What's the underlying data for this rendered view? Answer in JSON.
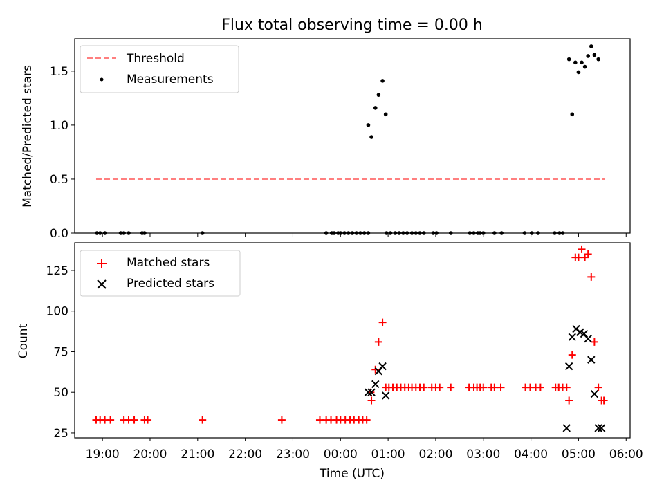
{
  "colors": {
    "threshold": "#ff7f7f",
    "measurements": "#000000",
    "matched": "#ff0000",
    "predicted": "#000000"
  },
  "chart_data": [
    {
      "type": "scatter",
      "title": "Flux total observing time = 0.00 h",
      "xlabel": "",
      "ylabel": "Matched/Predicted stars",
      "xlim": [
        "18:25",
        "06:05"
      ],
      "ylim": [
        0,
        1.8
      ],
      "yticks": [
        0.0,
        0.5,
        1.0,
        1.5
      ],
      "yticklabels": [
        "0.0",
        "0.5",
        "1.0",
        "1.5"
      ],
      "legend_position": "top-left",
      "legend": [
        "Threshold",
        "Measurements"
      ],
      "series": [
        {
          "name": "Threshold",
          "style": "dashed-line",
          "x": [
            "18:52",
            "05:33"
          ],
          "y": [
            0.5,
            0.5
          ]
        },
        {
          "name": "Measurements",
          "style": "dot",
          "x": [
            "18:53",
            "18:57",
            "19:03",
            "19:23",
            "19:27",
            "19:33",
            "19:50",
            "19:53",
            "21:06",
            "23:49",
            "23:42",
            "23:52",
            "23:57",
            "00:00",
            "00:05",
            "00:10",
            "00:15",
            "00:20",
            "00:25",
            "00:30",
            "00:35",
            "00:58",
            "01:03",
            "01:09",
            "01:14",
            "01:19",
            "01:24",
            "01:30",
            "01:35",
            "01:40",
            "01:45",
            "01:57",
            "02:01",
            "02:19",
            "02:43",
            "02:48",
            "02:53",
            "02:56",
            "03:00",
            "03:14",
            "03:23",
            "03:52",
            "04:01",
            "04:09",
            "04:30",
            "04:36",
            "04:40",
            "00:35",
            "00:39",
            "00:44",
            "00:48",
            "00:53",
            "00:57",
            "04:48",
            "04:52",
            "04:56",
            "05:00",
            "05:04",
            "05:08",
            "05:12",
            "05:16",
            "05:20",
            "05:25"
          ],
          "y": [
            0,
            0,
            0,
            0,
            0,
            0,
            0,
            0,
            0,
            0,
            0,
            0,
            0,
            0,
            0,
            0,
            0,
            0,
            0,
            0,
            0,
            0,
            0,
            0,
            0,
            0,
            0,
            0,
            0,
            0,
            0,
            0,
            0,
            0,
            0,
            0,
            0,
            0,
            0,
            0,
            0,
            0,
            0,
            0,
            0,
            0,
            0,
            1.0,
            0.89,
            1.16,
            1.28,
            1.41,
            1.1,
            1.61,
            1.1,
            1.58,
            1.49,
            1.58,
            1.54,
            1.64,
            1.73,
            1.65,
            1.61
          ]
        }
      ]
    },
    {
      "type": "scatter",
      "title": "",
      "xlabel": "Time (UTC)",
      "ylabel": "Count",
      "xlim": [
        "18:25",
        "06:05"
      ],
      "ylim": [
        22,
        142
      ],
      "yticks": [
        25,
        50,
        75,
        100,
        125
      ],
      "xticklabels": [
        "19:00",
        "20:00",
        "21:00",
        "22:00",
        "23:00",
        "00:00",
        "01:00",
        "02:00",
        "03:00",
        "04:00",
        "05:00",
        "06:00"
      ],
      "legend_position": "top-left",
      "legend": [
        "Matched stars",
        "Predicted stars"
      ],
      "series": [
        {
          "name": "Matched stars",
          "marker": "+",
          "x": [
            "18:52",
            "18:57",
            "19:03",
            "19:10",
            "19:27",
            "19:33",
            "19:40",
            "19:53",
            "19:57",
            "21:06",
            "22:46",
            "23:34",
            "23:42",
            "23:48",
            "23:55",
            "00:00",
            "00:06",
            "00:12",
            "00:17",
            "00:23",
            "00:28",
            "00:33",
            "00:38",
            "00:39",
            "00:44",
            "00:48",
            "00:53",
            "00:57",
            "01:01",
            "01:06",
            "01:11",
            "01:16",
            "01:21",
            "01:26",
            "01:30",
            "01:35",
            "01:40",
            "01:45",
            "01:55",
            "02:00",
            "02:05",
            "02:19",
            "02:42",
            "02:48",
            "02:52",
            "02:56",
            "03:00",
            "03:10",
            "03:14",
            "03:22",
            "03:53",
            "03:59",
            "04:06",
            "04:12",
            "04:31",
            "04:35",
            "04:40",
            "04:45",
            "04:48",
            "04:52",
            "04:56",
            "05:00",
            "05:04",
            "05:08",
            "05:12",
            "05:16",
            "05:20",
            "05:25",
            "05:29",
            "05:32"
          ],
          "y": [
            33,
            33,
            33,
            33,
            33,
            33,
            33,
            33,
            33,
            33,
            33,
            33,
            33,
            33,
            33,
            33,
            33,
            33,
            33,
            33,
            33,
            33,
            50,
            45,
            64,
            81,
            93,
            53,
            53,
            53,
            53,
            53,
            53,
            53,
            53,
            53,
            53,
            53,
            53,
            53,
            53,
            53,
            53,
            53,
            53,
            53,
            53,
            53,
            53,
            53,
            53,
            53,
            53,
            53,
            53,
            53,
            53,
            53,
            45,
            73,
            133,
            133,
            138,
            133,
            135,
            121,
            81,
            53,
            45,
            45
          ]
        },
        {
          "name": "Predicted stars",
          "marker": "x",
          "x": [
            "00:35",
            "00:39",
            "00:44",
            "00:48",
            "00:53",
            "00:57",
            "04:45",
            "04:48",
            "04:52",
            "04:57",
            "05:02",
            "05:07",
            "05:12",
            "05:16",
            "05:20",
            "05:25",
            "05:29"
          ],
          "y": [
            50,
            50,
            55,
            63,
            66,
            48,
            28,
            66,
            84,
            89,
            87,
            86,
            83,
            70,
            49,
            28,
            28
          ]
        }
      ]
    }
  ],
  "labels": {
    "title": "Flux total observing time = 0.00 h",
    "xlabel": "Time (UTC)",
    "ylabel_top": "Matched/Predicted stars",
    "ylabel_bottom": "Count",
    "legend_top": [
      "Threshold",
      "Measurements"
    ],
    "legend_bottom": [
      "Matched stars",
      "Predicted stars"
    ]
  }
}
